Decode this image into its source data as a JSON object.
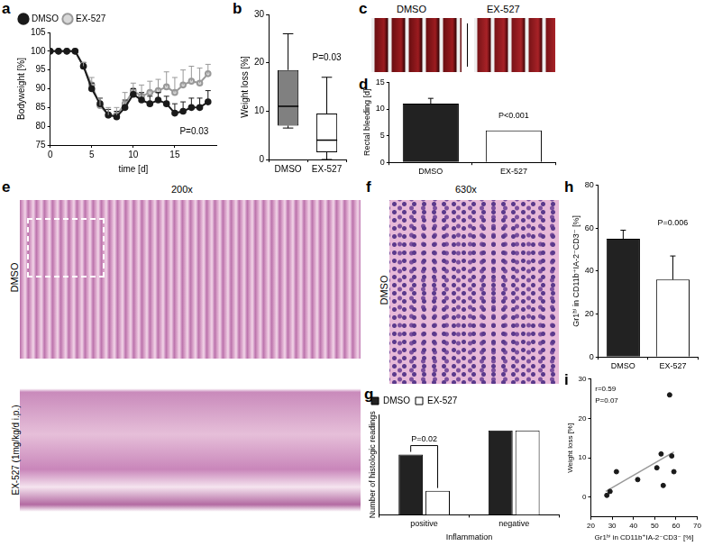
{
  "chart_data": [
    {
      "panel": "a",
      "type": "line",
      "x_label": "time [d]",
      "y_label": "Bodyweight [%]",
      "x": [
        0,
        1,
        2,
        3,
        4,
        5,
        6,
        7,
        8,
        9,
        10,
        11,
        12,
        13,
        14,
        15,
        16,
        17,
        18,
        19
      ],
      "series": [
        {
          "name": "DMSO",
          "color": "#1a1a1a",
          "marker": "circle",
          "values": [
            100,
            100,
            100,
            100,
            96,
            90,
            86,
            83,
            82.5,
            85,
            88.5,
            87,
            86,
            87,
            86,
            83.5,
            84,
            85,
            85,
            86.5
          ],
          "errors": [
            0,
            0,
            0,
            0,
            1,
            1.5,
            1.5,
            1.5,
            1.5,
            2,
            1.5,
            2,
            2,
            2,
            2,
            2.5,
            2.5,
            2.5,
            2.5,
            3
          ]
        },
        {
          "name": "EX-527",
          "color": "#999999",
          "marker": "circle",
          "values": [
            100,
            100,
            100,
            100,
            96,
            91,
            85.5,
            83,
            83,
            86,
            89.5,
            88,
            89,
            89.5,
            90.5,
            89,
            91,
            92,
            91.5,
            94
          ],
          "errors": [
            0,
            0,
            0,
            0,
            1,
            2,
            2,
            2,
            2,
            3,
            2,
            3,
            3,
            3,
            4,
            4,
            4,
            4,
            4,
            2.5
          ]
        }
      ],
      "xlim": [
        0,
        20
      ],
      "xticks": [
        0,
        5,
        10,
        15
      ],
      "ylim": [
        75,
        105
      ],
      "yticks": [
        75,
        80,
        85,
        90,
        95,
        100,
        105
      ],
      "grid": false,
      "legend": "top",
      "annotations": [
        "P=0.03"
      ]
    },
    {
      "panel": "b",
      "type": "box",
      "y_label": "Weight loss [%]",
      "categories": [
        "DMSO",
        "EX-527"
      ],
      "min": [
        6.5,
        0
      ],
      "q1": [
        7,
        1.5
      ],
      "median": [
        11,
        4
      ],
      "q3": [
        18.5,
        9.5
      ],
      "max": [
        26,
        17
      ],
      "colors": [
        "#808080",
        "#ffffff"
      ],
      "ylim": [
        0,
        30
      ],
      "yticks": [
        0,
        10,
        20,
        30
      ],
      "grid": false,
      "annotations": [
        "P=0.03"
      ]
    },
    {
      "panel": "d",
      "type": "bar",
      "y_label": "Rectal bleeding [d]",
      "categories": [
        "DMSO",
        "EX-527"
      ],
      "values": [
        11,
        6
      ],
      "errors": [
        1,
        0
      ],
      "colors": [
        "#222222",
        "#ffffff"
      ],
      "ylim": [
        0,
        15
      ],
      "yticks": [
        0,
        5,
        10,
        15
      ],
      "grid": false,
      "annotations": [
        "P<0.001"
      ]
    },
    {
      "panel": "g",
      "type": "bar",
      "x_label": "Inflammation",
      "y_label": "Number of histologic readings",
      "categories": [
        "positive",
        "negative"
      ],
      "series": [
        {
          "name": "DMSO",
          "color": "#222222",
          "values": [
            30,
            42
          ]
        },
        {
          "name": "EX-527",
          "color": "#ffffff",
          "values": [
            12,
            42
          ]
        }
      ],
      "ylim": [
        0,
        50
      ],
      "tick_labels": "x",
      "grid": false,
      "legend": "top-left",
      "annotations": [
        "P=0.02"
      ]
    },
    {
      "panel": "h",
      "type": "bar",
      "y_label": "Gr1ʰⁱ in CD11b⁺IA-2⁻CD3⁻ [%]",
      "categories": [
        "DMSO",
        "EX-527"
      ],
      "values": [
        55,
        36
      ],
      "errors": [
        4,
        11
      ],
      "colors": [
        "#222222",
        "#ffffff"
      ],
      "ylim": [
        0,
        80
      ],
      "yticks": [
        0,
        20,
        40,
        60,
        80
      ],
      "grid": false,
      "annotations": [
        "P=0.006"
      ]
    },
    {
      "panel": "i",
      "type": "scatter",
      "x_label": "Gr1ʰⁱ in CD11b⁺IA-2⁻CD3⁻ [%]",
      "y_label": "Weight loss [%]",
      "x": [
        27.5,
        29,
        32,
        42,
        51,
        53,
        54,
        57,
        58,
        59
      ],
      "values": [
        0.5,
        1.5,
        6.5,
        4.5,
        7.5,
        11,
        3,
        26,
        10.5,
        6.5
      ],
      "color": "#1a1a1a",
      "fit": {
        "x": [
          27,
          59
        ],
        "values": [
          1.5,
          11.5
        ],
        "color": "#999999"
      },
      "xlim": [
        20,
        70
      ],
      "xticks": [
        20,
        30,
        40,
        50,
        60,
        70
      ],
      "ylim": [
        -5,
        30
      ],
      "yticks": [
        0,
        10,
        20,
        30
      ],
      "grid": false,
      "annotations": [
        "r=0.59",
        "P=0.07"
      ]
    }
  ],
  "images": [
    {
      "panel": "c",
      "labels": [
        "DMSO",
        "EX-527"
      ]
    },
    {
      "panel": "e",
      "magnification": "200x",
      "labels": [
        "DMSO",
        "EX-527 (1mg/kg/d i.p.)"
      ]
    },
    {
      "panel": "f",
      "magnification": "630x",
      "labels": [
        "DMSO"
      ]
    }
  ]
}
